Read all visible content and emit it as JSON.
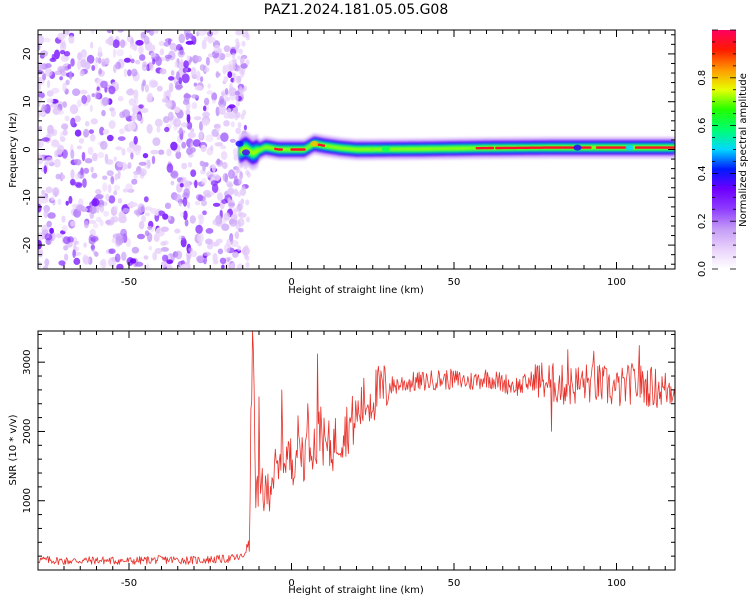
{
  "figure": {
    "title": "PAZ1.2024.181.05.05.G08"
  },
  "colors": {
    "snr_line": "#e8312a",
    "colormap": [
      "#ffffff",
      "#e9d2fb",
      "#c59cf6",
      "#8f3dff",
      "#6e00ff",
      "#0019ff",
      "#00d7ff",
      "#00ff70",
      "#22ff00",
      "#e7ff00",
      "#ff9a00",
      "#ff1a00",
      "#ff0060"
    ]
  },
  "chart_data": [
    {
      "id": "spectrogram",
      "type": "heatmap",
      "title": "PAZ1.2024.181.05.05.G08",
      "xlabel": "Height of straight line (km)",
      "ylabel": "Frequency (Hz)",
      "xlim": [
        -78,
        118
      ],
      "ylim": [
        -25,
        25
      ],
      "xticks": [
        -50,
        0,
        50,
        100
      ],
      "yticks": [
        -20,
        -10,
        0,
        10,
        20
      ],
      "grid": false,
      "colorbar": {
        "label": "Normalized spectral amplitude",
        "range": [
          0,
          1
        ],
        "ticks": [
          0.0,
          0.2,
          0.4,
          0.6,
          0.8
        ]
      },
      "regions": [
        {
          "x_range": [
            -78,
            -14
          ],
          "frequency_range": [
            -25,
            25
          ],
          "amplitude": "0.0-0.3",
          "description": "scattered noise blobs"
        },
        {
          "x_range": [
            -14,
            118
          ],
          "frequency_range": [
            -1,
            1
          ],
          "amplitude": "0.4-1.0",
          "description": "narrow signal band centred near 0 Hz"
        }
      ],
      "band_points": [
        {
          "x": -17,
          "f": 1.5
        },
        {
          "x": -16,
          "f": -0.5
        },
        {
          "x": -14,
          "f": 0.3
        },
        {
          "x": -12,
          "f": -0.8
        },
        {
          "x": -8,
          "f": 0.5
        },
        {
          "x": -4,
          "f": 0.0
        },
        {
          "x": 0,
          "f": 0.0
        },
        {
          "x": 4,
          "f": 0.0
        },
        {
          "x": 7,
          "f": 1.2
        },
        {
          "x": 10,
          "f": 0.8
        },
        {
          "x": 15,
          "f": 0.3
        },
        {
          "x": 20,
          "f": 0.0
        },
        {
          "x": 40,
          "f": 0.1
        },
        {
          "x": 60,
          "f": 0.3
        },
        {
          "x": 80,
          "f": 0.4
        },
        {
          "x": 100,
          "f": 0.4
        },
        {
          "x": 118,
          "f": 0.4
        }
      ]
    },
    {
      "id": "snr",
      "type": "line",
      "xlabel": "Height of straight line (km)",
      "ylabel": "SNR (10 * v/v)",
      "xlim": [
        -78,
        118
      ],
      "ylim": [
        0,
        3450
      ],
      "xticks": [
        -50,
        0,
        50,
        100
      ],
      "yticks": [
        1000,
        2000,
        3000
      ],
      "grid": false,
      "series": [
        {
          "x": [
            -78,
            -70,
            -60,
            -50,
            -40,
            -30,
            -20,
            -15,
            -13,
            -12,
            -11,
            -10,
            -9,
            -8,
            -6,
            -4,
            -2,
            0,
            2,
            4,
            6,
            8,
            9,
            10,
            12,
            14,
            16,
            18,
            20,
            22,
            24,
            26,
            28,
            30,
            35,
            40,
            45,
            50,
            55,
            60,
            65,
            70,
            75,
            80,
            85,
            90,
            95,
            100,
            105,
            110,
            115,
            118
          ],
          "y": [
            150,
            130,
            140,
            130,
            150,
            140,
            160,
            190,
            400,
            3450,
            1200,
            900,
            1300,
            1000,
            1400,
            1350,
            1700,
            1550,
            1850,
            1650,
            1900,
            1700,
            2200,
            1800,
            1750,
            1900,
            2000,
            2100,
            2200,
            2400,
            2450,
            2550,
            2600,
            2650,
            2700,
            2720,
            2750,
            2750,
            2720,
            2780,
            2700,
            2650,
            2750,
            2700,
            2650,
            2700,
            2680,
            2600,
            2700,
            2650,
            2600,
            2650
          ],
          "noise": [
            {
              "x_range": [
                -78,
                -13
              ],
              "amplitude": 60
            },
            {
              "x_range": [
                -13,
                30
              ],
              "amplitude": 400
            },
            {
              "x_range": [
                30,
                75
              ],
              "amplitude": 150
            },
            {
              "x_range": [
                75,
                118
              ],
              "amplitude": 300
            }
          ],
          "spikes": [
            {
              "x": -12,
              "y": 3450
            },
            {
              "x": 8,
              "y": 3120
            },
            {
              "x": -10,
              "y": 2500
            },
            {
              "x": -3,
              "y": 2600
            },
            {
              "x": 5,
              "y": 2400
            },
            {
              "x": 85,
              "y": 3180
            },
            {
              "x": 93,
              "y": 3160
            },
            {
              "x": 107,
              "y": 3240
            },
            {
              "x": 80,
              "y": 2000
            }
          ]
        }
      ]
    }
  ]
}
